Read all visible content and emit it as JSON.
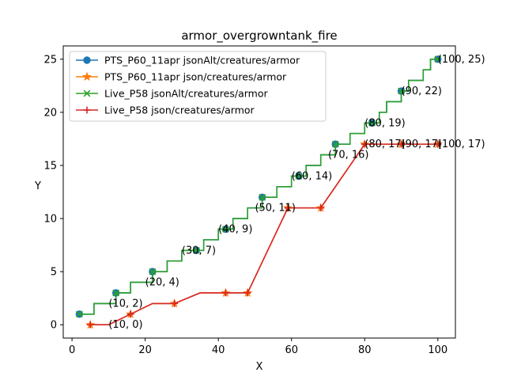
{
  "chart_data": {
    "type": "line",
    "title": "armor_overgrowntank_fire",
    "xlabel": "X",
    "ylabel": "Y",
    "xlim": [
      -2.4,
      104.8
    ],
    "ylim": [
      -1.25,
      26.25
    ],
    "xticks": [
      0,
      20,
      40,
      60,
      80,
      100
    ],
    "yticks": [
      0,
      5,
      10,
      15,
      20,
      25
    ],
    "grid": false,
    "legend_position": "upper-left",
    "series": [
      {
        "name": "PTS_P60_11apr jsonAlt/creatures/armor",
        "color": "#1f77b4",
        "marker": "circle",
        "step": true,
        "x": [
          2,
          4,
          6,
          8,
          10,
          12,
          14,
          16,
          18,
          20,
          22,
          24,
          26,
          28,
          30,
          32,
          34,
          36,
          38,
          40,
          42,
          44,
          46,
          48,
          50,
          52,
          54,
          56,
          58,
          60,
          62,
          64,
          66,
          68,
          70,
          72,
          74,
          76,
          78,
          80,
          82,
          84,
          86,
          88,
          90,
          92,
          94,
          96,
          98,
          100
        ],
        "y": [
          1,
          1,
          2,
          2,
          2,
          3,
          3,
          4,
          4,
          4,
          5,
          5,
          6,
          6,
          7,
          7,
          7,
          8,
          8,
          9,
          9,
          10,
          10,
          11,
          11,
          12,
          12,
          13,
          13,
          14,
          14,
          15,
          15,
          16,
          16,
          17,
          17,
          18,
          18,
          19,
          19,
          20,
          21,
          21,
          22,
          23,
          23,
          24,
          25,
          25
        ],
        "marker_x": [
          2,
          12,
          22,
          34,
          42,
          52,
          62,
          72,
          82,
          90,
          100
        ],
        "marker_y": [
          1,
          3,
          5,
          7,
          9,
          12,
          14,
          17,
          19,
          22,
          25
        ]
      },
      {
        "name": "PTS_P60_11apr json/creatures/armor",
        "color": "#ff7f0e",
        "marker": "star",
        "step": false,
        "x": [
          5,
          10,
          16,
          22,
          28,
          35,
          42,
          48,
          59,
          68,
          80,
          90,
          100
        ],
        "y": [
          0,
          0,
          1,
          2,
          2,
          3,
          3,
          3,
          11,
          11,
          17,
          17,
          17
        ],
        "marker_x": [
          5,
          16,
          28,
          42,
          48,
          59,
          68,
          80,
          90,
          100
        ],
        "marker_y": [
          0,
          1,
          2,
          3,
          3,
          11,
          11,
          17,
          17,
          17
        ]
      },
      {
        "name": "Live_P58 jsonAlt/creatures/armor",
        "color": "#2ca02c",
        "marker": "x",
        "step": true,
        "x": [
          2,
          4,
          6,
          8,
          10,
          12,
          14,
          16,
          18,
          20,
          22,
          24,
          26,
          28,
          30,
          32,
          34,
          36,
          38,
          40,
          42,
          44,
          46,
          48,
          50,
          52,
          54,
          56,
          58,
          60,
          62,
          64,
          66,
          68,
          70,
          72,
          74,
          76,
          78,
          80,
          82,
          84,
          86,
          88,
          90,
          92,
          94,
          96,
          98,
          100
        ],
        "y": [
          1,
          1,
          2,
          2,
          2,
          3,
          3,
          4,
          4,
          4,
          5,
          5,
          6,
          6,
          7,
          7,
          7,
          8,
          8,
          9,
          9,
          10,
          10,
          11,
          11,
          12,
          12,
          13,
          13,
          14,
          14,
          15,
          15,
          16,
          16,
          17,
          17,
          18,
          18,
          19,
          19,
          20,
          21,
          21,
          22,
          23,
          23,
          24,
          25,
          25
        ],
        "marker_x": [
          2,
          12,
          22,
          34,
          42,
          52,
          62,
          72,
          82,
          90,
          100
        ],
        "marker_y": [
          1,
          3,
          5,
          7,
          9,
          12,
          14,
          17,
          19,
          22,
          25
        ]
      },
      {
        "name": "Live_P58 json/creatures/armor",
        "color": "#d62728",
        "marker": "plus",
        "step": false,
        "x": [
          5,
          10,
          16,
          22,
          28,
          35,
          42,
          48,
          59,
          68,
          80,
          90,
          100
        ],
        "y": [
          0,
          0,
          1,
          2,
          2,
          3,
          3,
          3,
          11,
          11,
          17,
          17,
          17
        ],
        "marker_x": [
          5,
          16,
          28,
          42,
          48,
          59,
          68,
          80,
          90,
          100
        ],
        "marker_y": [
          0,
          1,
          2,
          3,
          3,
          11,
          11,
          17,
          17,
          17
        ]
      }
    ],
    "annotations": [
      {
        "text": "(10, 2)",
        "x": 10,
        "y": 2
      },
      {
        "text": "(10, 0)",
        "x": 10,
        "y": 0
      },
      {
        "text": "(20, 4)",
        "x": 20,
        "y": 4
      },
      {
        "text": "(30, 7)",
        "x": 30,
        "y": 7
      },
      {
        "text": "(40, 9)",
        "x": 40,
        "y": 9
      },
      {
        "text": "(50, 11)",
        "x": 50,
        "y": 11
      },
      {
        "text": "(60, 14)",
        "x": 60,
        "y": 14
      },
      {
        "text": "(70, 16)",
        "x": 70,
        "y": 16
      },
      {
        "text": "(80, 19)",
        "x": 80,
        "y": 19
      },
      {
        "text": "(80, 17)",
        "x": 80,
        "y": 17
      },
      {
        "text": "(90, 22)",
        "x": 90,
        "y": 22
      },
      {
        "text": "(90, 17)",
        "x": 90,
        "y": 17
      },
      {
        "text": "(100, 25)",
        "x": 100,
        "y": 25
      },
      {
        "text": "(100, 17)",
        "x": 100,
        "y": 17
      }
    ]
  }
}
